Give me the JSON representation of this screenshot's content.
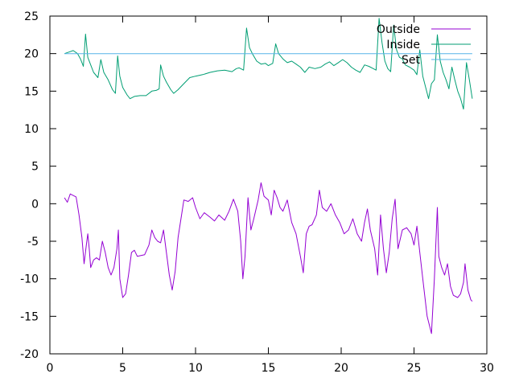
{
  "chart_data": {
    "type": "line",
    "title": "",
    "xlabel": "",
    "ylabel": "",
    "xlim": [
      0,
      30
    ],
    "ylim": [
      -20,
      25
    ],
    "x_ticks": [
      0,
      5,
      10,
      15,
      20,
      25,
      30
    ],
    "y_ticks": [
      -20,
      -15,
      -10,
      -5,
      0,
      5,
      10,
      15,
      20,
      25
    ],
    "grid": false,
    "legend_position": "top-right",
    "series": [
      {
        "name": "Outside",
        "color": "#9400d3",
        "points": [
          [
            1.0,
            0.8
          ],
          [
            1.2,
            0.2
          ],
          [
            1.4,
            1.3
          ],
          [
            1.6,
            1.1
          ],
          [
            1.8,
            0.9
          ],
          [
            2.0,
            -1.5
          ],
          [
            2.2,
            -4.5
          ],
          [
            2.35,
            -8.0
          ],
          [
            2.5,
            -5.5
          ],
          [
            2.6,
            -4.0
          ],
          [
            2.7,
            -6.0
          ],
          [
            2.8,
            -8.5
          ],
          [
            3.0,
            -7.5
          ],
          [
            3.2,
            -7.2
          ],
          [
            3.4,
            -7.5
          ],
          [
            3.6,
            -5.0
          ],
          [
            3.8,
            -6.5
          ],
          [
            4.0,
            -8.5
          ],
          [
            4.2,
            -9.5
          ],
          [
            4.4,
            -8.5
          ],
          [
            4.6,
            -6.0
          ],
          [
            4.7,
            -3.5
          ],
          [
            4.8,
            -10.0
          ],
          [
            5.0,
            -12.5
          ],
          [
            5.2,
            -12.0
          ],
          [
            5.4,
            -9.5
          ],
          [
            5.6,
            -6.5
          ],
          [
            5.8,
            -6.2
          ],
          [
            6.0,
            -7.0
          ],
          [
            6.5,
            -6.8
          ],
          [
            6.8,
            -5.5
          ],
          [
            7.0,
            -3.5
          ],
          [
            7.2,
            -4.5
          ],
          [
            7.4,
            -5.0
          ],
          [
            7.6,
            -5.2
          ],
          [
            7.8,
            -3.5
          ],
          [
            8.0,
            -6.5
          ],
          [
            8.2,
            -9.5
          ],
          [
            8.4,
            -11.5
          ],
          [
            8.6,
            -9.0
          ],
          [
            8.8,
            -4.5
          ],
          [
            9.0,
            -2.0
          ],
          [
            9.2,
            0.5
          ],
          [
            9.5,
            0.3
          ],
          [
            9.8,
            0.8
          ],
          [
            10.0,
            -0.5
          ],
          [
            10.3,
            -2.0
          ],
          [
            10.6,
            -1.2
          ],
          [
            11.0,
            -1.8
          ],
          [
            11.3,
            -2.3
          ],
          [
            11.6,
            -1.5
          ],
          [
            12.0,
            -2.2
          ],
          [
            12.3,
            -1.0
          ],
          [
            12.6,
            0.6
          ],
          [
            12.9,
            -1.0
          ],
          [
            13.1,
            -5.0
          ],
          [
            13.25,
            -10.0
          ],
          [
            13.4,
            -7.0
          ],
          [
            13.6,
            0.8
          ],
          [
            13.8,
            -3.5
          ],
          [
            14.0,
            -2.0
          ],
          [
            14.3,
            0.5
          ],
          [
            14.5,
            2.8
          ],
          [
            14.7,
            1.0
          ],
          [
            15.0,
            0.5
          ],
          [
            15.2,
            -1.5
          ],
          [
            15.4,
            1.8
          ],
          [
            15.6,
            0.8
          ],
          [
            15.8,
            -0.5
          ],
          [
            16.0,
            -1.0
          ],
          [
            16.3,
            0.5
          ],
          [
            16.6,
            -2.5
          ],
          [
            16.9,
            -4.0
          ],
          [
            17.2,
            -7.0
          ],
          [
            17.4,
            -9.2
          ],
          [
            17.6,
            -4.0
          ],
          [
            17.8,
            -3.0
          ],
          [
            18.0,
            -2.8
          ],
          [
            18.3,
            -1.5
          ],
          [
            18.5,
            1.8
          ],
          [
            18.7,
            -0.5
          ],
          [
            19.0,
            -1.0
          ],
          [
            19.3,
            0.0
          ],
          [
            19.6,
            -1.5
          ],
          [
            19.9,
            -2.5
          ],
          [
            20.2,
            -4.0
          ],
          [
            20.5,
            -3.5
          ],
          [
            20.8,
            -2.0
          ],
          [
            21.1,
            -4.0
          ],
          [
            21.4,
            -5.0
          ],
          [
            21.6,
            -2.5
          ],
          [
            21.8,
            -0.7
          ],
          [
            22.0,
            -3.5
          ],
          [
            22.3,
            -6.0
          ],
          [
            22.5,
            -9.5
          ],
          [
            22.7,
            -1.5
          ],
          [
            22.9,
            -6.0
          ],
          [
            23.1,
            -9.2
          ],
          [
            23.3,
            -6.5
          ],
          [
            23.5,
            -2.0
          ],
          [
            23.7,
            0.6
          ],
          [
            23.9,
            -6.0
          ],
          [
            24.2,
            -3.5
          ],
          [
            24.5,
            -3.2
          ],
          [
            24.8,
            -4.0
          ],
          [
            25.0,
            -5.5
          ],
          [
            25.2,
            -3.0
          ],
          [
            25.4,
            -6.5
          ],
          [
            25.6,
            -10.0
          ],
          [
            25.9,
            -15.0
          ],
          [
            26.2,
            -17.3
          ],
          [
            26.4,
            -10.0
          ],
          [
            26.6,
            -0.5
          ],
          [
            26.7,
            -7.0
          ],
          [
            26.9,
            -8.5
          ],
          [
            27.1,
            -9.5
          ],
          [
            27.3,
            -8.0
          ],
          [
            27.5,
            -11.0
          ],
          [
            27.7,
            -12.2
          ],
          [
            28.0,
            -12.5
          ],
          [
            28.2,
            -12.0
          ],
          [
            28.4,
            -10.5
          ],
          [
            28.5,
            -8.0
          ],
          [
            28.7,
            -11.5
          ],
          [
            28.9,
            -12.8
          ],
          [
            29.0,
            -13.0
          ]
        ]
      },
      {
        "name": "Inside",
        "color": "#009e73",
        "points": [
          [
            1.0,
            20.0
          ],
          [
            1.3,
            20.2
          ],
          [
            1.6,
            20.4
          ],
          [
            1.9,
            20.0
          ],
          [
            2.1,
            19.3
          ],
          [
            2.3,
            18.3
          ],
          [
            2.45,
            22.6
          ],
          [
            2.6,
            19.5
          ],
          [
            2.8,
            18.5
          ],
          [
            3.0,
            17.5
          ],
          [
            3.3,
            16.8
          ],
          [
            3.5,
            19.2
          ],
          [
            3.7,
            17.5
          ],
          [
            4.0,
            16.5
          ],
          [
            4.3,
            15.2
          ],
          [
            4.5,
            14.7
          ],
          [
            4.65,
            19.7
          ],
          [
            4.8,
            17.0
          ],
          [
            5.0,
            15.5
          ],
          [
            5.3,
            14.5
          ],
          [
            5.5,
            14.0
          ],
          [
            5.8,
            14.3
          ],
          [
            6.2,
            14.4
          ],
          [
            6.6,
            14.4
          ],
          [
            7.0,
            15.0
          ],
          [
            7.3,
            15.1
          ],
          [
            7.5,
            15.3
          ],
          [
            7.6,
            18.5
          ],
          [
            7.8,
            17.0
          ],
          [
            8.0,
            16.2
          ],
          [
            8.3,
            15.2
          ],
          [
            8.5,
            14.7
          ],
          [
            8.8,
            15.2
          ],
          [
            9.2,
            16.0
          ],
          [
            9.6,
            16.8
          ],
          [
            10.0,
            17.0
          ],
          [
            10.5,
            17.2
          ],
          [
            11.0,
            17.5
          ],
          [
            11.5,
            17.7
          ],
          [
            12.0,
            17.8
          ],
          [
            12.5,
            17.6
          ],
          [
            12.8,
            18.0
          ],
          [
            13.0,
            18.1
          ],
          [
            13.3,
            17.8
          ],
          [
            13.5,
            23.4
          ],
          [
            13.7,
            20.8
          ],
          [
            13.9,
            20.0
          ],
          [
            14.2,
            19.0
          ],
          [
            14.5,
            18.6
          ],
          [
            14.8,
            18.7
          ],
          [
            15.0,
            18.4
          ],
          [
            15.3,
            18.7
          ],
          [
            15.5,
            21.3
          ],
          [
            15.7,
            20.0
          ],
          [
            16.0,
            19.3
          ],
          [
            16.3,
            18.8
          ],
          [
            16.6,
            19.0
          ],
          [
            16.9,
            18.6
          ],
          [
            17.2,
            18.2
          ],
          [
            17.5,
            17.5
          ],
          [
            17.8,
            18.2
          ],
          [
            18.2,
            18.0
          ],
          [
            18.6,
            18.2
          ],
          [
            18.9,
            18.6
          ],
          [
            19.2,
            18.9
          ],
          [
            19.5,
            18.4
          ],
          [
            19.8,
            18.8
          ],
          [
            20.1,
            19.2
          ],
          [
            20.4,
            18.8
          ],
          [
            20.7,
            18.2
          ],
          [
            21.0,
            17.8
          ],
          [
            21.3,
            17.5
          ],
          [
            21.6,
            18.5
          ],
          [
            21.9,
            18.3
          ],
          [
            22.2,
            18.0
          ],
          [
            22.4,
            17.8
          ],
          [
            22.6,
            24.7
          ],
          [
            22.8,
            21.5
          ],
          [
            23.0,
            19.0
          ],
          [
            23.2,
            18.0
          ],
          [
            23.4,
            17.6
          ],
          [
            23.6,
            23.8
          ],
          [
            23.8,
            20.5
          ],
          [
            24.0,
            19.5
          ],
          [
            24.2,
            19.3
          ],
          [
            24.4,
            18.5
          ],
          [
            24.7,
            18.2
          ],
          [
            25.0,
            17.8
          ],
          [
            25.2,
            17.2
          ],
          [
            25.4,
            20.5
          ],
          [
            25.6,
            17.0
          ],
          [
            25.8,
            15.5
          ],
          [
            26.0,
            14.0
          ],
          [
            26.2,
            16.0
          ],
          [
            26.4,
            16.5
          ],
          [
            26.6,
            22.5
          ],
          [
            26.8,
            19.0
          ],
          [
            27.0,
            17.5
          ],
          [
            27.2,
            16.5
          ],
          [
            27.4,
            15.3
          ],
          [
            27.6,
            18.2
          ],
          [
            27.8,
            16.5
          ],
          [
            28.0,
            15.0
          ],
          [
            28.2,
            14.0
          ],
          [
            28.4,
            12.6
          ],
          [
            28.6,
            18.8
          ],
          [
            28.8,
            16.5
          ],
          [
            29.0,
            14.0
          ]
        ]
      },
      {
        "name": "Set",
        "color": "#56b4e9",
        "points": [
          [
            1.0,
            20.0
          ],
          [
            29.0,
            20.0
          ]
        ]
      }
    ]
  }
}
